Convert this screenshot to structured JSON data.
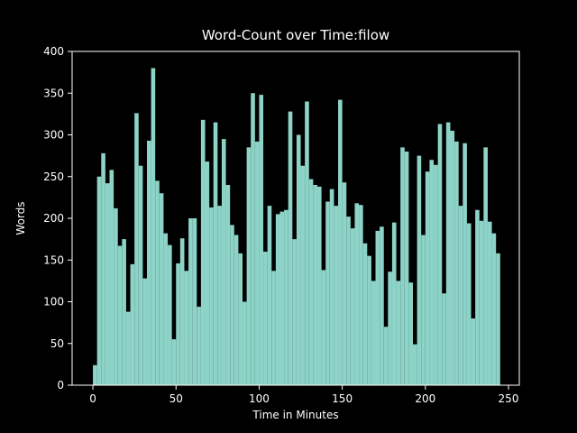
{
  "figure": {
    "background_color": "#000000",
    "text_color": "#ffffff"
  },
  "chart_data": {
    "type": "bar",
    "title": "Word-Count over Time:filow",
    "xlabel": "Time in Minutes",
    "ylabel": "Words",
    "bar_color": "#8DD3C7",
    "axis_color": "#ffffff",
    "grid": false,
    "legend": null,
    "x_start": 0,
    "x_step": 2.5,
    "xlim": [
      -12.5,
      256.5
    ],
    "ylim": [
      0,
      400
    ],
    "xticks": [
      0,
      50,
      100,
      150,
      200,
      250
    ],
    "yticks": [
      0,
      50,
      100,
      150,
      200,
      250,
      300,
      350,
      400
    ],
    "values": [
      24,
      250,
      278,
      242,
      258,
      212,
      167,
      175,
      88,
      145,
      326,
      263,
      128,
      293,
      380,
      245,
      230,
      182,
      168,
      55,
      146,
      176,
      137,
      200,
      200,
      94,
      318,
      268,
      213,
      315,
      215,
      295,
      240,
      192,
      180,
      158,
      100,
      285,
      350,
      292,
      348,
      160,
      215,
      137,
      205,
      208,
      210,
      328,
      175,
      300,
      263,
      340,
      247,
      240,
      238,
      138,
      220,
      235,
      215,
      342,
      243,
      202,
      188,
      218,
      216,
      170,
      155,
      125,
      185,
      190,
      70,
      136,
      195,
      125,
      285,
      280,
      123,
      49,
      275,
      180,
      256,
      270,
      264,
      313,
      110,
      315,
      305,
      292,
      215,
      290,
      194,
      80,
      210,
      197,
      285,
      196,
      182,
      158
    ]
  }
}
